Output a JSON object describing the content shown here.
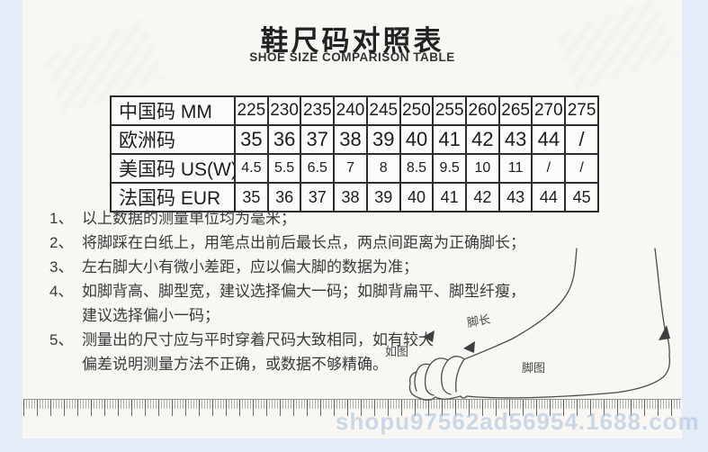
{
  "title": "鞋尺码对照表",
  "subtitle": "SHOE SIZE COMPARISON TABLE",
  "size_table": {
    "rows": [
      {
        "label": "中国码 MM",
        "values": [
          "225",
          "230",
          "235",
          "240",
          "245",
          "250",
          "255",
          "260",
          "265",
          "270",
          "275"
        ]
      },
      {
        "label": "欧洲码",
        "values": [
          "35",
          "36",
          "37",
          "38",
          "39",
          "40",
          "41",
          "42",
          "43",
          "44",
          "/"
        ]
      },
      {
        "label": "美国码 US(W)",
        "values": [
          "4.5",
          "5.5",
          "6.5",
          "7",
          "8",
          "8.5",
          "9.5",
          "10",
          "11",
          "/",
          "/"
        ]
      },
      {
        "label": "法国码 EUR",
        "values": [
          "35",
          "36",
          "37",
          "38",
          "39",
          "40",
          "41",
          "42",
          "43",
          "44",
          "45"
        ]
      }
    ]
  },
  "notes": [
    {
      "num": "1、",
      "lines": [
        "以上数据的测量单位均为毫米；"
      ]
    },
    {
      "num": "2、",
      "lines": [
        "将脚踩在白纸上，用笔点出前后最长点，两点间距离为正确脚长；"
      ]
    },
    {
      "num": "3、",
      "lines": [
        "左右脚大小有微小差距，应以偏大脚的数据为准；"
      ]
    },
    {
      "num": "4、",
      "lines": [
        "如脚背高、脚型宽，建议选择偏大一码；如脚背扁平、脚型纤瘦，",
        "建议选择偏小一码；"
      ]
    },
    {
      "num": "5、",
      "lines": [
        "测量出的尺寸应与平时穿着尺码大致相同，如有较大",
        "偏差说明测量方法不正确，或数据不够精确。"
      ]
    }
  ],
  "diagram": {
    "foot_length_label": "脚长",
    "as_shown_label": "如图",
    "foot_figure_label": "脚图"
  },
  "watermark": "shopu97562ad56954.1688.com",
  "colors": {
    "page_bg": "#e3ecf7",
    "content_bg": "#f8f7f4",
    "table_border": "#2d2d2d",
    "text": "#222222"
  }
}
